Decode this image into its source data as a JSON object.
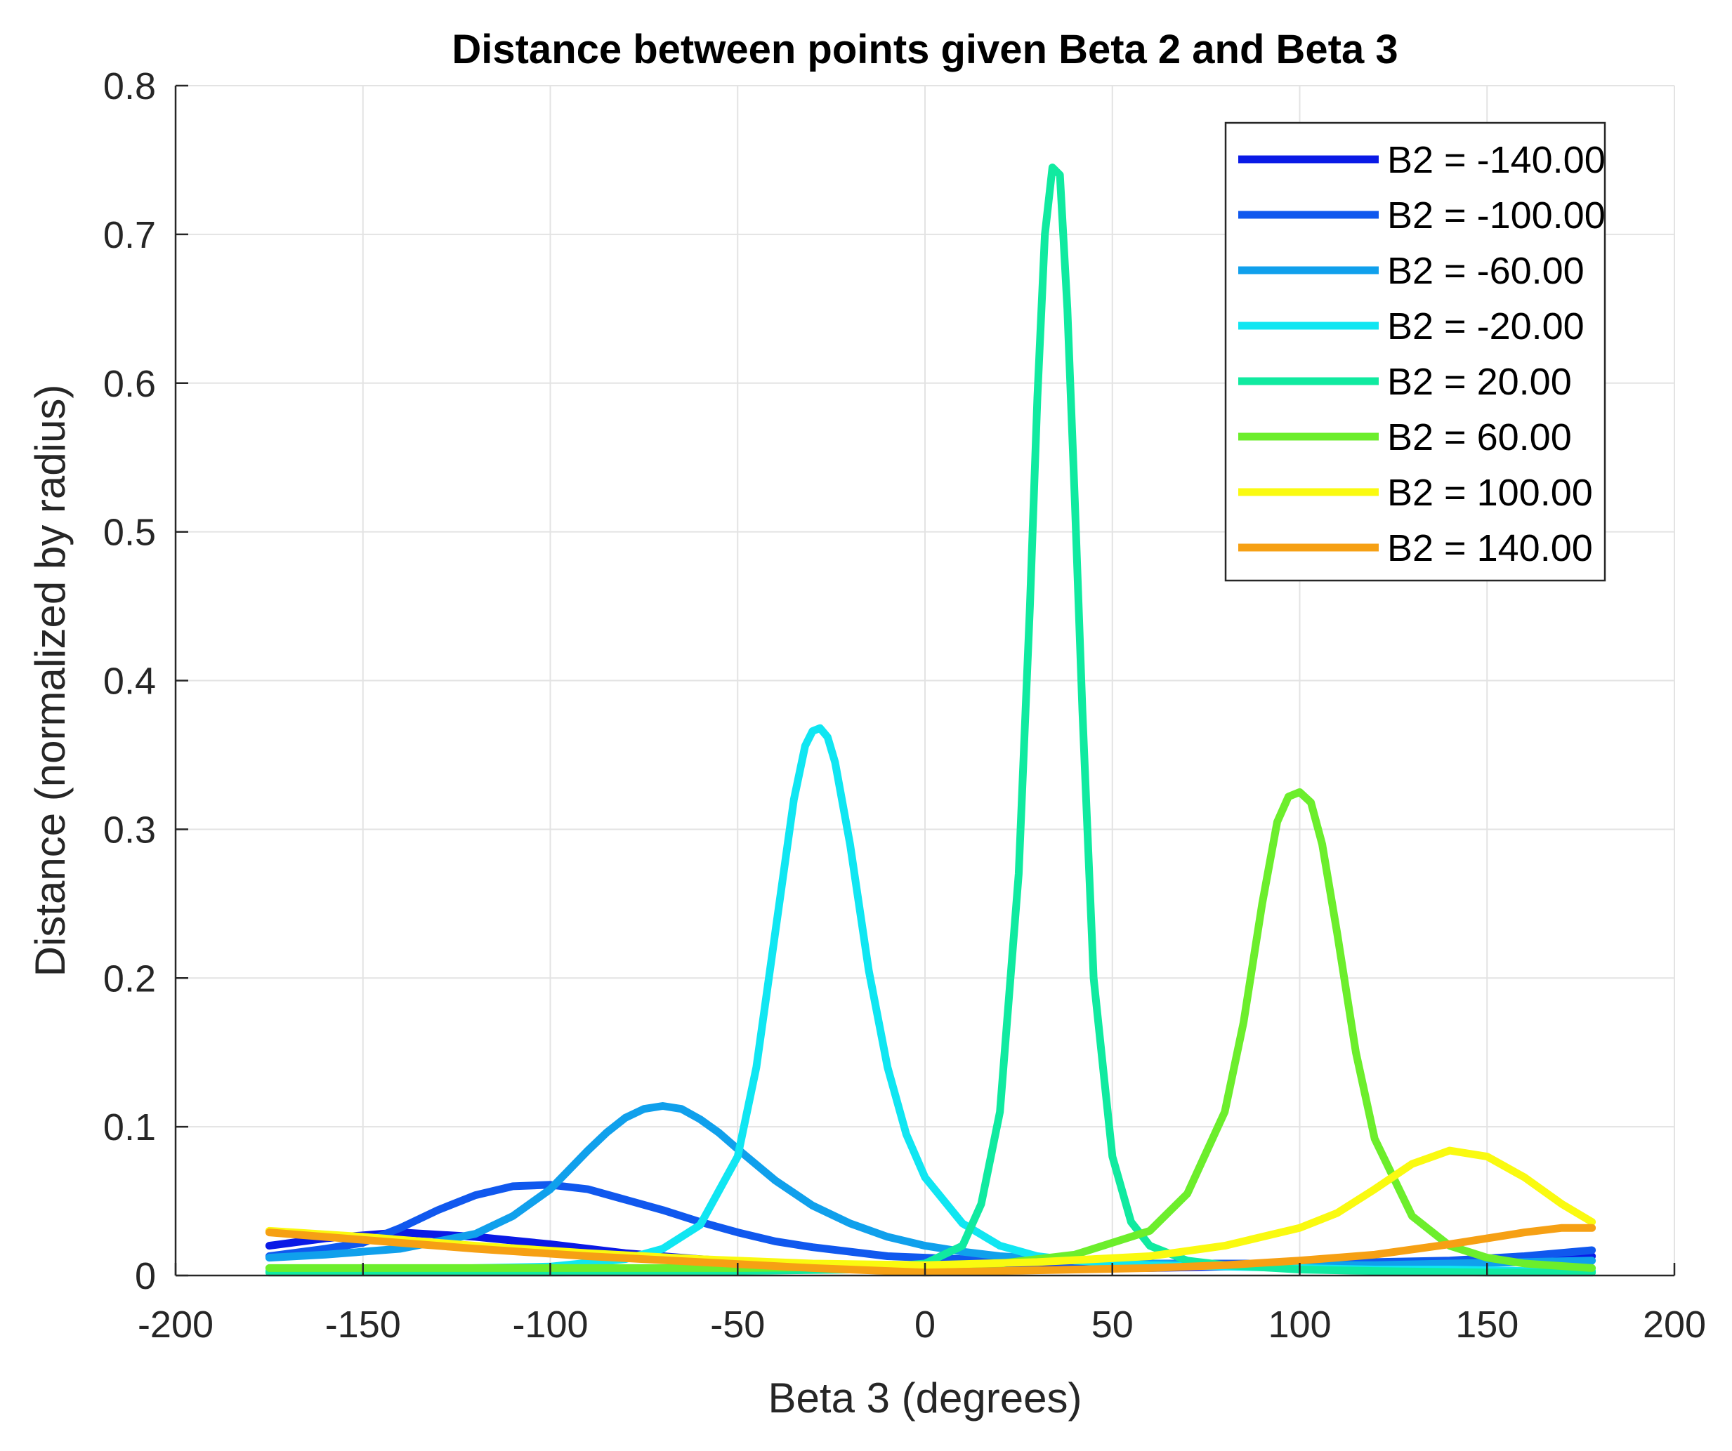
{
  "chart_data": {
    "type": "line",
    "title": "Distance between points given Beta 2 and Beta 3",
    "xlabel": "Beta 3 (degrees)",
    "ylabel": "Distance (normalized by radius)",
    "xlim": [
      -200,
      200
    ],
    "ylim": [
      0,
      0.8
    ],
    "xticks": [
      -200,
      -150,
      -100,
      -50,
      0,
      50,
      100,
      150,
      200
    ],
    "xtick_labels": [
      "-200",
      "-150",
      "-100",
      "-50",
      "0",
      "50",
      "100",
      "150",
      "200"
    ],
    "yticks": [
      0,
      0.1,
      0.2,
      0.3,
      0.4,
      0.5,
      0.6,
      0.7,
      0.8
    ],
    "ytick_labels": [
      "0",
      "0.1",
      "0.2",
      "0.3",
      "0.4",
      "0.5",
      "0.6",
      "0.7",
      "0.8"
    ],
    "grid": true,
    "legend_position": "top-right",
    "series": [
      {
        "name": "B2 = -140.00",
        "color": "#0a1ae6",
        "x": [
          -175,
          -160,
          -140,
          -120,
          -100,
          -80,
          -60,
          -40,
          -20,
          0,
          20,
          40,
          60,
          80,
          100,
          120,
          140,
          160,
          178
        ],
        "y": [
          0.02,
          0.025,
          0.029,
          0.026,
          0.021,
          0.015,
          0.011,
          0.008,
          0.006,
          0.005,
          0.005,
          0.005,
          0.005,
          0.006,
          0.007,
          0.008,
          0.009,
          0.011,
          0.013
        ]
      },
      {
        "name": "B2 = -100.00",
        "color": "#1058ee",
        "x": [
          -175,
          -160,
          -150,
          -140,
          -130,
          -120,
          -110,
          -100,
          -90,
          -80,
          -70,
          -60,
          -50,
          -40,
          -30,
          -20,
          -10,
          0,
          20,
          40,
          60,
          80,
          100,
          120,
          140,
          160,
          178
        ],
        "y": [
          0.013,
          0.018,
          0.022,
          0.032,
          0.044,
          0.054,
          0.06,
          0.061,
          0.058,
          0.051,
          0.044,
          0.036,
          0.029,
          0.023,
          0.019,
          0.016,
          0.013,
          0.012,
          0.01,
          0.009,
          0.008,
          0.008,
          0.008,
          0.009,
          0.01,
          0.013,
          0.017
        ]
      },
      {
        "name": "B2 = -60.00",
        "color": "#10a0ec",
        "x": [
          -175,
          -160,
          -140,
          -120,
          -110,
          -100,
          -90,
          -85,
          -80,
          -75,
          -70,
          -65,
          -60,
          -55,
          -50,
          -40,
          -30,
          -20,
          -10,
          0,
          10,
          20,
          40,
          60,
          80,
          100,
          120,
          140,
          160,
          178
        ],
        "y": [
          0.012,
          0.014,
          0.018,
          0.028,
          0.04,
          0.058,
          0.084,
          0.096,
          0.106,
          0.112,
          0.114,
          0.112,
          0.105,
          0.096,
          0.085,
          0.064,
          0.047,
          0.035,
          0.026,
          0.02,
          0.016,
          0.013,
          0.01,
          0.008,
          0.007,
          0.007,
          0.007,
          0.008,
          0.009,
          0.01
        ]
      },
      {
        "name": "B2 = -20.00",
        "color": "#10e6f2",
        "x": [
          -175,
          -140,
          -120,
          -100,
          -80,
          -70,
          -60,
          -50,
          -45,
          -40,
          -35,
          -32,
          -30,
          -28,
          -26,
          -24,
          -20,
          -15,
          -10,
          -5,
          0,
          10,
          20,
          30,
          40,
          60,
          80,
          100,
          120,
          140,
          160,
          178
        ],
        "y": [
          0.003,
          0.004,
          0.005,
          0.006,
          0.011,
          0.018,
          0.034,
          0.08,
          0.14,
          0.23,
          0.32,
          0.356,
          0.366,
          0.368,
          0.362,
          0.345,
          0.29,
          0.205,
          0.14,
          0.095,
          0.066,
          0.035,
          0.02,
          0.013,
          0.01,
          0.007,
          0.006,
          0.005,
          0.004,
          0.004,
          0.003,
          0.003
        ]
      },
      {
        "name": "B2 = 20.00",
        "color": "#10eaa0",
        "x": [
          -175,
          -100,
          -50,
          -20,
          0,
          10,
          15,
          20,
          25,
          28,
          30,
          32,
          34,
          36,
          38,
          40,
          42,
          45,
          50,
          55,
          60,
          70,
          80,
          100,
          120,
          150,
          178
        ],
        "y": [
          0.002,
          0.002,
          0.003,
          0.004,
          0.008,
          0.02,
          0.048,
          0.11,
          0.27,
          0.45,
          0.59,
          0.7,
          0.745,
          0.74,
          0.65,
          0.52,
          0.38,
          0.2,
          0.08,
          0.036,
          0.02,
          0.01,
          0.007,
          0.004,
          0.003,
          0.002,
          0.002
        ]
      },
      {
        "name": "B2 = 60.00",
        "color": "#6cee2c",
        "x": [
          -175,
          -100,
          -50,
          0,
          20,
          40,
          60,
          70,
          80,
          85,
          90,
          94,
          97,
          100,
          103,
          106,
          110,
          115,
          120,
          130,
          140,
          150,
          160,
          178
        ],
        "y": [
          0.005,
          0.005,
          0.005,
          0.006,
          0.008,
          0.014,
          0.03,
          0.055,
          0.11,
          0.17,
          0.25,
          0.305,
          0.322,
          0.325,
          0.318,
          0.29,
          0.23,
          0.15,
          0.092,
          0.04,
          0.02,
          0.012,
          0.008,
          0.005
        ]
      },
      {
        "name": "B2 = 100.00",
        "color": "#fafa10",
        "x": [
          -175,
          -150,
          -120,
          -90,
          -60,
          -30,
          0,
          30,
          60,
          80,
          100,
          110,
          120,
          130,
          140,
          150,
          160,
          170,
          178
        ],
        "y": [
          0.03,
          0.026,
          0.02,
          0.015,
          0.011,
          0.008,
          0.007,
          0.009,
          0.013,
          0.02,
          0.032,
          0.042,
          0.058,
          0.075,
          0.084,
          0.08,
          0.066,
          0.048,
          0.036
        ]
      },
      {
        "name": "B2 = 140.00",
        "color": "#f6a014",
        "x": [
          -175,
          -150,
          -120,
          -90,
          -60,
          -30,
          -10,
          0,
          20,
          40,
          60,
          80,
          100,
          120,
          140,
          160,
          170,
          178
        ],
        "y": [
          0.029,
          0.024,
          0.018,
          0.013,
          0.009,
          0.005,
          0.003,
          0.002,
          0.003,
          0.004,
          0.005,
          0.007,
          0.01,
          0.014,
          0.021,
          0.029,
          0.032,
          0.032
        ]
      }
    ]
  }
}
